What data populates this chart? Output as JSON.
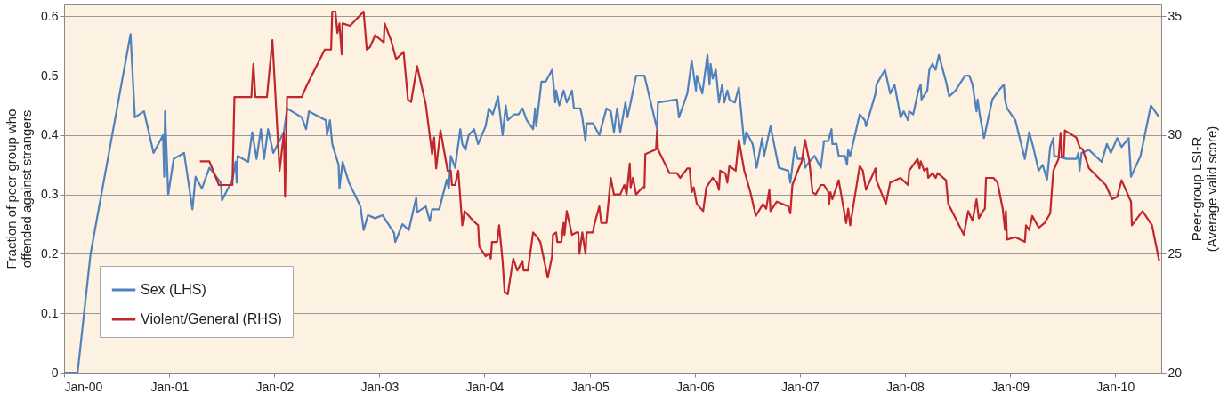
{
  "chart_data": {
    "type": "line",
    "xlim": [
      "2000-01-01",
      "2010-06-10"
    ],
    "xticks": [
      {
        "value": "2000-01-01",
        "label": "Jan-00"
      },
      {
        "value": "2001-01-01",
        "label": "Jan-01"
      },
      {
        "value": "2002-01-01",
        "label": "Jan-02"
      },
      {
        "value": "2003-01-01",
        "label": "Jan-03"
      },
      {
        "value": "2004-01-01",
        "label": "Jan-04"
      },
      {
        "value": "2005-01-01",
        "label": "Jan-05"
      },
      {
        "value": "2006-01-01",
        "label": "Jan-06"
      },
      {
        "value": "2007-01-01",
        "label": "Jan-07"
      },
      {
        "value": "2008-01-01",
        "label": "Jan-08"
      },
      {
        "value": "2009-01-01",
        "label": "Jan-09"
      },
      {
        "value": "2010-01-01",
        "label": "Jan-10"
      }
    ],
    "ylim": [
      0,
      0.62
    ],
    "yticks": [
      0,
      0.1,
      0.2,
      0.3,
      0.4,
      0.5,
      0.6
    ],
    "y2lim": [
      20,
      35.5
    ],
    "y2ticks": [
      20,
      25,
      30,
      35
    ],
    "ylabel": "Fraction of peer-group who offended against strangers",
    "y2label": "Peer-group LSI-R (Average valid score)",
    "grid": "y",
    "legend": "bottom left",
    "marker": "none",
    "line_style": "solid",
    "series": [
      {
        "name": "Sex (LHS)",
        "color": "#4f81bd",
        "axis": "y",
        "x": [
          "2000-01-01",
          "2000-02-17",
          "2000-04-02",
          "2000-08-19",
          "2000-09-03",
          "2000-10-05",
          "2000-11-07",
          "2000-12-10",
          "2000-12-14",
          "2000-12-17",
          "2000-12-28",
          "2001-01-16",
          "2001-02-21",
          "2001-03-22",
          "2001-04-02",
          "2001-04-24",
          "2001-05-20",
          "2001-06-29",
          "2001-07-03",
          "2001-08-08",
          "2001-08-19",
          "2001-08-23",
          "2001-08-26",
          "2001-10-02",
          "2001-10-16",
          "2001-10-31",
          "2001-11-15",
          "2001-11-26",
          "2001-12-10",
          "2001-12-28",
          "2002-02-03",
          "2002-02-14",
          "2002-04-06",
          "2002-04-21",
          "2002-05-01",
          "2002-06-29",
          "2002-07-03",
          "2002-07-13",
          "2002-07-21",
          "2002-08-12",
          "2002-08-15",
          "2002-08-26",
          "2002-09-17",
          "2002-10-27",
          "2002-11-07",
          "2002-11-22",
          "2002-12-17",
          "2003-01-12",
          "2003-02-21",
          "2003-02-25",
          "2003-03-22",
          "2003-04-13",
          "2003-05-09",
          "2003-05-12",
          "2003-06-11",
          "2003-06-25",
          "2003-07-03",
          "2003-07-28",
          "2003-08-23",
          "2003-08-30",
          "2003-09-06",
          "2003-09-21",
          "2003-10-09",
          "2003-10-16",
          "2003-10-27",
          "2003-11-07",
          "2003-11-26",
          "2003-12-10",
          "2004-01-05",
          "2004-01-16",
          "2004-01-30",
          "2004-02-17",
          "2004-03-04",
          "2004-03-15",
          "2004-03-22",
          "2004-04-13",
          "2004-04-28",
          "2004-05-12",
          "2004-05-27",
          "2004-06-18",
          "2004-06-25",
          "2004-06-29",
          "2004-07-17",
          "2004-08-01",
          "2004-08-23",
          "2004-09-03",
          "2004-09-06",
          "2004-09-17",
          "2004-10-02",
          "2004-10-13",
          "2004-10-31",
          "2004-11-07",
          "2004-11-29",
          "2004-12-06",
          "2004-12-17",
          "2004-12-21",
          "2005-01-12",
          "2005-02-03",
          "2005-02-28",
          "2005-03-15",
          "2005-03-26",
          "2005-04-06",
          "2005-04-17",
          "2005-05-05",
          "2005-05-12",
          "2005-05-23",
          "2005-06-11",
          "2005-07-10",
          "2005-08-23",
          "2005-08-26",
          "2005-10-31",
          "2005-11-07",
          "2005-12-06",
          "2005-12-21",
          "2006-01-05",
          "2006-01-08",
          "2006-01-27",
          "2006-02-14",
          "2006-02-21",
          "2006-02-25",
          "2006-03-04",
          "2006-03-15",
          "2006-03-26",
          "2006-04-06",
          "2006-04-13",
          "2006-04-24",
          "2006-05-01",
          "2006-05-20",
          "2006-06-03",
          "2006-06-22",
          "2006-06-29",
          "2006-07-21",
          "2006-08-04",
          "2006-08-23",
          "2006-08-30",
          "2006-09-21",
          "2006-10-20",
          "2006-11-22",
          "2006-11-29",
          "2006-12-14",
          "2006-12-25",
          "2007-01-16",
          "2007-01-19",
          "2007-02-03",
          "2007-02-21",
          "2007-03-15",
          "2007-03-26",
          "2007-04-10",
          "2007-04-21",
          "2007-04-24",
          "2007-05-09",
          "2007-05-16",
          "2007-06-07",
          "2007-06-14",
          "2007-06-18",
          "2007-06-25",
          "2007-07-28",
          "2007-08-15",
          "2007-08-19",
          "2007-09-21",
          "2007-09-24",
          "2007-10-24",
          "2007-11-11",
          "2007-11-26",
          "2007-12-17",
          "2007-12-28",
          "2008-01-12",
          "2008-01-16",
          "2008-01-30",
          "2008-02-17",
          "2008-02-25",
          "2008-02-28",
          "2008-03-19",
          "2008-03-26",
          "2008-04-06",
          "2008-04-17",
          "2008-04-28",
          "2008-05-09",
          "2008-05-23",
          "2008-06-03",
          "2008-06-25",
          "2008-07-28",
          "2008-08-12",
          "2008-08-23",
          "2008-09-06",
          "2008-09-10",
          "2008-09-17",
          "2008-10-02",
          "2008-10-13",
          "2008-10-31",
          "2008-11-22",
          "2008-12-10",
          "2008-12-14",
          "2008-12-21",
          "2009-01-19",
          "2009-02-21",
          "2009-03-08",
          "2009-03-22",
          "2009-04-10",
          "2009-04-24",
          "2009-05-09",
          "2009-05-20",
          "2009-05-31",
          "2009-06-03",
          "2009-07-17",
          "2009-08-19",
          "2009-08-26",
          "2009-08-30",
          "2009-09-06",
          "2009-10-02",
          "2009-11-15",
          "2009-12-03",
          "2009-12-17",
          "2010-01-08",
          "2010-01-23",
          "2010-02-17",
          "2010-02-25",
          "2010-03-30",
          "2010-05-05",
          "2010-06-03"
        ],
        "values": [
          0,
          0,
          0.2,
          0.57,
          0.43,
          0.44,
          0.37,
          0.4,
          0.33,
          0.44,
          0.3,
          0.36,
          0.37,
          0.275,
          0.33,
          0.31,
          0.345,
          0.32,
          0.29,
          0.325,
          0.355,
          0.32,
          0.365,
          0.355,
          0.405,
          0.36,
          0.41,
          0.36,
          0.41,
          0.37,
          0.405,
          0.445,
          0.43,
          0.41,
          0.44,
          0.425,
          0.4,
          0.425,
          0.385,
          0.35,
          0.31,
          0.355,
          0.32,
          0.28,
          0.24,
          0.265,
          0.26,
          0.265,
          0.235,
          0.22,
          0.25,
          0.24,
          0.295,
          0.27,
          0.28,
          0.255,
          0.275,
          0.275,
          0.325,
          0.31,
          0.365,
          0.345,
          0.41,
          0.385,
          0.375,
          0.4,
          0.41,
          0.385,
          0.415,
          0.445,
          0.435,
          0.465,
          0.4,
          0.45,
          0.425,
          0.435,
          0.435,
          0.445,
          0.425,
          0.41,
          0.445,
          0.415,
          0.49,
          0.49,
          0.51,
          0.455,
          0.475,
          0.45,
          0.475,
          0.455,
          0.475,
          0.445,
          0.445,
          0.43,
          0.39,
          0.42,
          0.42,
          0.4,
          0.445,
          0.44,
          0.405,
          0.445,
          0.405,
          0.455,
          0.43,
          0.455,
          0.5,
          0.5,
          0.41,
          0.455,
          0.46,
          0.43,
          0.47,
          0.525,
          0.475,
          0.5,
          0.47,
          0.535,
          0.485,
          0.52,
          0.495,
          0.51,
          0.455,
          0.485,
          0.455,
          0.475,
          0.46,
          0.455,
          0.48,
          0.385,
          0.405,
          0.385,
          0.345,
          0.395,
          0.365,
          0.415,
          0.345,
          0.34,
          0.32,
          0.38,
          0.36,
          0.36,
          0.345,
          0.355,
          0.365,
          0.345,
          0.39,
          0.39,
          0.41,
          0.385,
          0.385,
          0.365,
          0.365,
          0.35,
          0.375,
          0.365,
          0.435,
          0.425,
          0.415,
          0.47,
          0.485,
          0.51,
          0.47,
          0.485,
          0.43,
          0.44,
          0.425,
          0.44,
          0.435,
          0.475,
          0.485,
          0.46,
          0.475,
          0.51,
          0.52,
          0.51,
          0.535,
          0.515,
          0.49,
          0.465,
          0.475,
          0.5,
          0.5,
          0.485,
          0.44,
          0.46,
          0.435,
          0.395,
          0.42,
          0.46,
          0.475,
          0.485,
          0.46,
          0.445,
          0.425,
          0.36,
          0.405,
          0.38,
          0.34,
          0.35,
          0.325,
          0.38,
          0.395,
          0.365,
          0.36,
          0.36,
          0.37,
          0.34,
          0.37,
          0.375,
          0.355,
          0.385,
          0.37,
          0.395,
          0.38,
          0.395,
          0.33,
          0.365,
          0.45,
          0.43
        ]
      },
      {
        "name": "Violent/General (RHS)",
        "color": "#c0272d",
        "axis": "y2",
        "x": [
          "2001-04-17",
          "2001-05-20",
          "2001-06-22",
          "2001-08-08",
          "2001-08-15",
          "2001-10-13",
          "2001-10-20",
          "2001-10-27",
          "2001-12-06",
          "2001-12-25",
          "2002-01-19",
          "2002-02-03",
          "2002-02-07",
          "2002-02-14",
          "2002-04-06",
          "2002-04-24",
          "2002-06-25",
          "2002-07-17",
          "2002-07-21",
          "2002-08-01",
          "2002-08-08",
          "2002-08-15",
          "2002-08-23",
          "2002-08-26",
          "2002-09-21",
          "2002-11-07",
          "2002-11-18",
          "2002-11-29",
          "2002-12-17",
          "2003-01-16",
          "2003-01-19",
          "2003-02-10",
          "2003-02-28",
          "2003-03-26",
          "2003-04-10",
          "2003-04-21",
          "2003-05-12",
          "2003-06-11",
          "2003-07-03",
          "2003-07-10",
          "2003-07-17",
          "2003-08-01",
          "2003-08-26",
          "2003-09-06",
          "2003-09-10",
          "2003-09-21",
          "2003-10-02",
          "2003-10-16",
          "2003-10-24",
          "2003-11-22",
          "2003-12-10",
          "2003-12-14",
          "2004-01-05",
          "2004-01-16",
          "2004-01-23",
          "2004-01-27",
          "2004-02-14",
          "2004-02-21",
          "2004-03-04",
          "2004-03-11",
          "2004-03-22",
          "2004-04-10",
          "2004-04-24",
          "2004-05-12",
          "2004-05-16",
          "2004-05-31",
          "2004-06-18",
          "2004-07-03",
          "2004-07-13",
          "2004-08-08",
          "2004-08-23",
          "2004-08-26",
          "2004-09-06",
          "2004-09-10",
          "2004-09-24",
          "2004-10-02",
          "2004-10-05",
          "2004-10-13",
          "2004-10-31",
          "2004-11-15",
          "2004-11-22",
          "2004-11-26",
          "2004-12-06",
          "2004-12-17",
          "2004-12-21",
          "2005-01-12",
          "2005-01-16",
          "2005-02-03",
          "2005-02-10",
          "2005-02-28",
          "2005-03-15",
          "2005-03-26",
          "2005-04-17",
          "2005-05-01",
          "2005-05-09",
          "2005-05-20",
          "2005-05-23",
          "2005-05-31",
          "2005-06-11",
          "2005-07-03",
          "2005-07-10",
          "2005-07-13",
          "2005-08-19",
          "2005-08-23",
          "2005-08-26",
          "2005-10-05",
          "2005-10-31",
          "2005-11-11",
          "2005-12-06",
          "2005-12-14",
          "2005-12-21",
          "2005-12-28",
          "2006-01-08",
          "2006-01-30",
          "2006-02-10",
          "2006-03-04",
          "2006-03-19",
          "2006-03-26",
          "2006-03-30",
          "2006-04-17",
          "2006-04-24",
          "2006-05-01",
          "2006-05-23",
          "2006-06-03",
          "2006-06-22",
          "2006-07-13",
          "2006-08-01",
          "2006-08-26",
          "2006-09-06",
          "2006-09-17",
          "2006-09-21",
          "2006-10-13",
          "2006-11-22",
          "2006-11-29",
          "2006-12-06",
          "2006-12-25",
          "2007-01-08",
          "2007-01-19",
          "2007-02-03",
          "2007-02-14",
          "2007-02-25",
          "2007-03-15",
          "2007-03-26",
          "2007-04-10",
          "2007-04-13",
          "2007-04-17",
          "2007-04-24",
          "2007-05-16",
          "2007-06-11",
          "2007-06-18",
          "2007-06-25",
          "2007-07-28",
          "2007-08-08",
          "2007-08-19",
          "2007-09-21",
          "2007-09-24",
          "2007-10-27",
          "2007-11-11",
          "2007-12-17",
          "2008-01-12",
          "2008-01-16",
          "2008-02-14",
          "2008-02-21",
          "2008-02-25",
          "2008-03-08",
          "2008-03-19",
          "2008-03-22",
          "2008-04-06",
          "2008-04-17",
          "2008-04-24",
          "2008-05-23",
          "2008-05-31",
          "2008-07-24",
          "2008-08-08",
          "2008-08-23",
          "2008-09-06",
          "2008-09-14",
          "2008-09-28",
          "2008-10-05",
          "2008-10-09",
          "2008-11-04",
          "2008-11-18",
          "2008-12-06",
          "2008-12-14",
          "2008-12-17",
          "2008-12-21",
          "2009-01-19",
          "2009-02-21",
          "2009-02-25",
          "2009-03-08",
          "2009-03-19",
          "2009-04-10",
          "2009-05-01",
          "2009-05-20",
          "2009-05-31",
          "2009-06-18",
          "2009-06-25",
          "2009-06-29",
          "2009-07-06",
          "2009-07-10",
          "2009-08-19",
          "2009-08-30",
          "2009-09-10",
          "2009-10-02",
          "2009-11-04",
          "2009-11-29",
          "2009-12-21",
          "2010-01-08",
          "2010-01-23",
          "2010-02-25",
          "2010-02-28",
          "2010-04-06",
          "2010-05-09",
          "2010-06-03"
        ],
        "values": [
          28.9,
          28.9,
          27.9,
          27.9,
          31.6,
          31.6,
          33.0,
          31.6,
          31.6,
          34.0,
          28.5,
          30.1,
          27.4,
          31.6,
          31.6,
          32.1,
          33.6,
          33.6,
          35.2,
          35.2,
          34.3,
          34.7,
          33.4,
          34.7,
          34.6,
          35.2,
          33.6,
          33.7,
          34.2,
          33.9,
          34.7,
          34.0,
          33.2,
          33.5,
          31.5,
          31.4,
          32.9,
          31.3,
          29.2,
          29.9,
          28.6,
          30.2,
          28.5,
          28.5,
          27.9,
          27.9,
          28.5,
          26.2,
          26.8,
          26.4,
          26.2,
          25.3,
          24.9,
          25.0,
          24.8,
          25.5,
          25.5,
          26.2,
          24.7,
          23.4,
          23.3,
          24.8,
          24.3,
          24.7,
          24.3,
          24.3,
          25.9,
          25.7,
          25.5,
          24.0,
          24.9,
          25.8,
          25.9,
          25.5,
          25.5,
          26.3,
          25.8,
          26.8,
          25.8,
          25.9,
          25.9,
          25.0,
          25.9,
          25.0,
          25.9,
          25.9,
          26.2,
          27.0,
          26.3,
          26.3,
          28.2,
          27.5,
          27.5,
          27.9,
          27.5,
          28.8,
          27.8,
          28.2,
          27.5,
          27.8,
          27.8,
          29.2,
          29.4,
          30.2,
          29.4,
          28.4,
          28.4,
          28.2,
          28.6,
          28.6,
          27.6,
          27.8,
          27.1,
          26.8,
          27.8,
          28.2,
          28.0,
          27.7,
          28.5,
          28.4,
          28.0,
          28.7,
          28.5,
          29.8,
          28.5,
          27.6,
          26.6,
          27.1,
          26.9,
          27.7,
          26.8,
          27.2,
          27.0,
          26.7,
          27.9,
          28.5,
          28.9,
          29.8,
          28.9,
          27.6,
          27.5,
          27.9,
          27.9,
          27.6,
          27.1,
          27.6,
          27.3,
          28.1,
          26.3,
          26.9,
          26.2,
          28.7,
          28.5,
          27.7,
          28.6,
          28.1,
          27.1,
          28.0,
          28.2,
          27.9,
          28.5,
          29.0,
          28.6,
          28.9,
          28.5,
          28.6,
          28.2,
          28.4,
          28.2,
          28.4,
          28.1,
          27.1,
          25.8,
          26.8,
          26.4,
          27.3,
          26.5,
          26.8,
          26.9,
          28.2,
          28.2,
          28.0,
          26.9,
          26.0,
          26.8,
          25.6,
          25.7,
          25.5,
          26.2,
          26.0,
          26.6,
          26.1,
          26.3,
          26.7,
          28.5,
          29.0,
          30.1,
          29.1,
          29.1,
          30.2,
          29.9,
          29.5,
          29.4,
          28.6,
          28.2,
          27.9,
          27.3,
          27.4,
          28.1,
          27.2,
          26.2,
          26.8,
          26.2,
          24.7
        ]
      }
    ]
  }
}
